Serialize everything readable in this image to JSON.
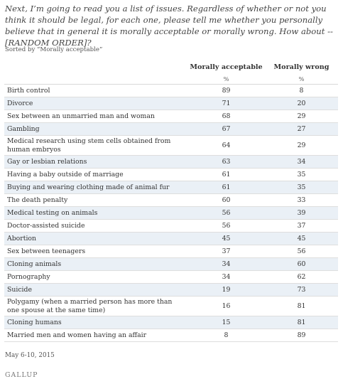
{
  "question": "Next, I’m going to read you a list of issues. Regardless of whether or not you think it should be legal, for each one, please tell me whether you personally believe that in general it is morally acceptable or morally wrong.  How about -- [RANDOM ORDER]?",
  "sort_note": "Sorted by “Morally acceptable”",
  "footnote": "May 6-10, 2015",
  "logo_text": "GALLUP",
  "colors": {
    "shaded_row": "#eaf0f6",
    "text": "#333333",
    "rule": "#dedede"
  },
  "chart_data": {
    "type": "table",
    "columns": [
      "Morally acceptable",
      "Morally wrong"
    ],
    "units": [
      "%",
      "%"
    ],
    "rows": [
      {
        "label": "Birth control",
        "values": [
          "89",
          "8"
        ]
      },
      {
        "label": "Divorce",
        "values": [
          "71",
          "20"
        ]
      },
      {
        "label": "Sex between an unmarried man and woman",
        "values": [
          "68",
          "29"
        ]
      },
      {
        "label": "Gambling",
        "values": [
          "67",
          "27"
        ]
      },
      {
        "label": "Medical research using stem cells obtained from human embryos",
        "values": [
          "64",
          "29"
        ]
      },
      {
        "label": "Gay or lesbian relations",
        "values": [
          "63",
          "34"
        ]
      },
      {
        "label": "Having a baby outside of marriage",
        "values": [
          "61",
          "35"
        ]
      },
      {
        "label": "Buying and wearing clothing made of animal fur",
        "values": [
          "61",
          "35"
        ]
      },
      {
        "label": "The death penalty",
        "values": [
          "60",
          "33"
        ]
      },
      {
        "label": "Medical testing on animals",
        "values": [
          "56",
          "39"
        ]
      },
      {
        "label": "Doctor-assisted suicide",
        "values": [
          "56",
          "37"
        ]
      },
      {
        "label": "Abortion",
        "values": [
          "45",
          "45"
        ]
      },
      {
        "label": "Sex between teenagers",
        "values": [
          "37",
          "56"
        ]
      },
      {
        "label": "Cloning animals",
        "values": [
          "34",
          "60"
        ]
      },
      {
        "label": "Pornography",
        "values": [
          "34",
          "62"
        ]
      },
      {
        "label": "Suicide",
        "values": [
          "19",
          "73"
        ]
      },
      {
        "label": "Polygamy (when a married person has more than one spouse at the same time)",
        "values": [
          "16",
          "81"
        ]
      },
      {
        "label": "Cloning humans",
        "values": [
          "15",
          "81"
        ]
      },
      {
        "label": "Married men and women having an affair",
        "values": [
          "8",
          "89"
        ]
      }
    ]
  }
}
